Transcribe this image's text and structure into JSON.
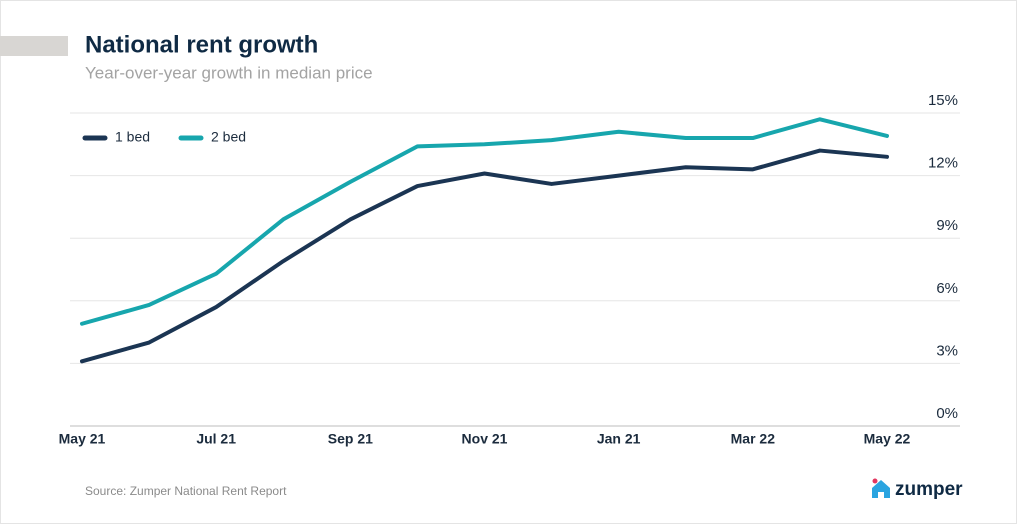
{
  "chart_data": {
    "type": "line",
    "title": "National rent growth",
    "subtitle": "Year-over-year growth in median price",
    "categories": [
      "May 21",
      null,
      "Jul 21",
      null,
      "Sep 21",
      null,
      "Nov 21",
      null,
      "Jan 21",
      null,
      "Mar 22",
      null,
      "May 22"
    ],
    "series": [
      {
        "name": "1 bed",
        "color": "#1b3553",
        "values": [
          3.1,
          4.0,
          5.7,
          7.9,
          9.9,
          11.5,
          12.1,
          11.6,
          12.0,
          12.4,
          12.3,
          13.2,
          12.9
        ]
      },
      {
        "name": "2 bed",
        "color": "#17a6ad",
        "values": [
          4.9,
          5.8,
          7.3,
          9.9,
          11.7,
          13.4,
          13.5,
          13.7,
          14.1,
          13.8,
          13.8,
          14.7,
          13.9
        ]
      }
    ],
    "ylim": [
      0,
      15
    ],
    "yticks": [
      {
        "value": 0,
        "label": "0%"
      },
      {
        "value": 3,
        "label": "3%"
      },
      {
        "value": 6,
        "label": "6%"
      },
      {
        "value": 9,
        "label": "9%"
      },
      {
        "value": 12,
        "label": "12%"
      },
      {
        "value": 15,
        "label": "15%"
      }
    ],
    "grid": true,
    "legend": "top-left",
    "source": "Source: Zumper National Rent Report",
    "brand": "zumper"
  }
}
